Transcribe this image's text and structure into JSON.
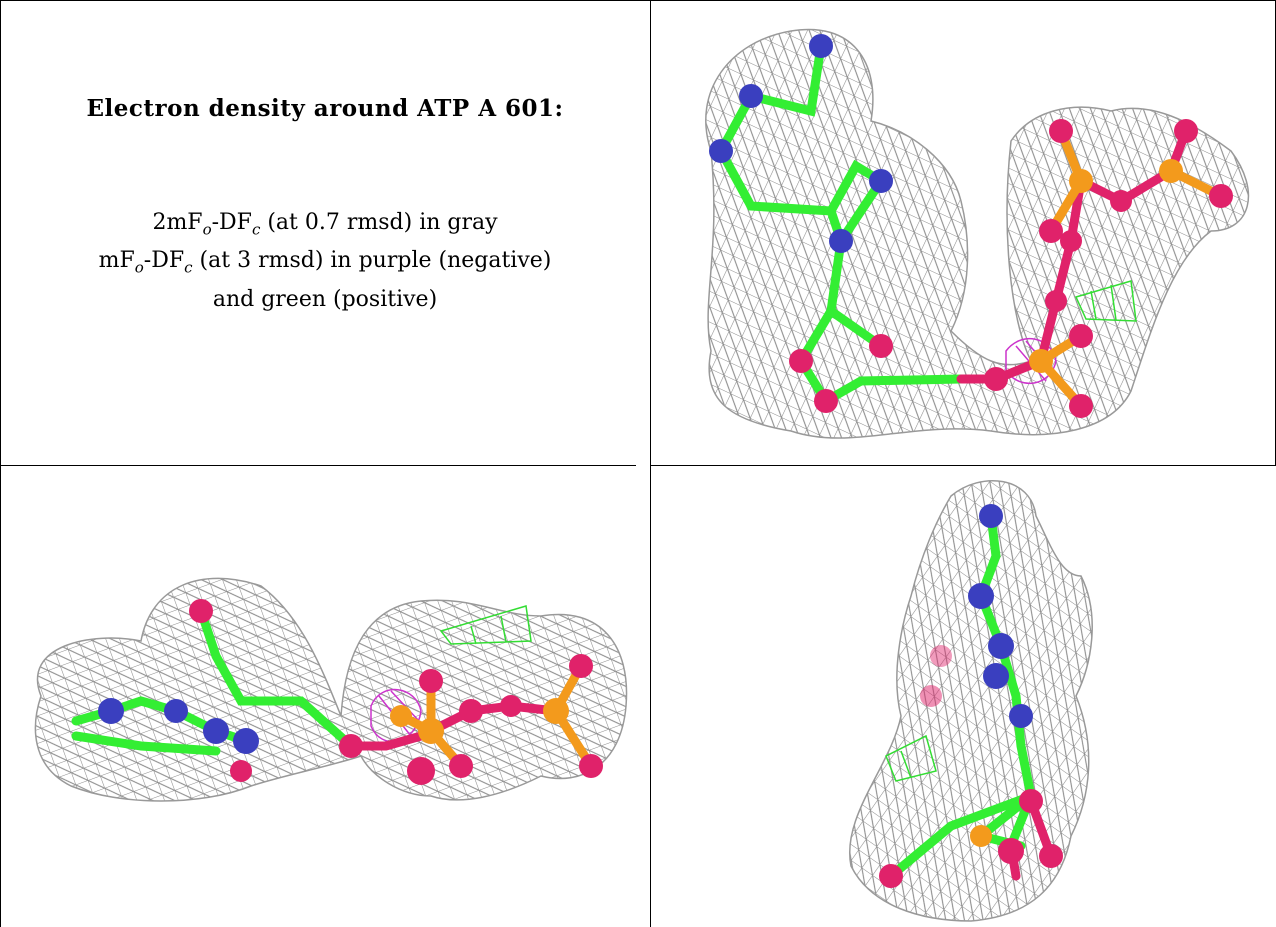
{
  "caption": {
    "title": "Electron density around ATP A 601:",
    "line1": {
      "pre": "2mF",
      "sub_o": "o",
      "mid": "-DF",
      "sub_c": "c",
      "post": " (at 0.7 rmsd) in gray"
    },
    "line2": {
      "pre": "mF",
      "sub_o": "o",
      "mid": "-DF",
      "sub_c": "c",
      "post": " (at 3 rmsd) in purple (negative)"
    },
    "line3": "and green (positive)"
  },
  "colors": {
    "mesh_2fofc": "#8c8c8c",
    "diff_negative": "#cc33cc",
    "diff_positive": "#33dd33",
    "carbon": "#33ee33",
    "nitrogen": "#3a3fbf",
    "oxygen": "#e0226a",
    "phosphorus": "#f39a1c"
  }
}
